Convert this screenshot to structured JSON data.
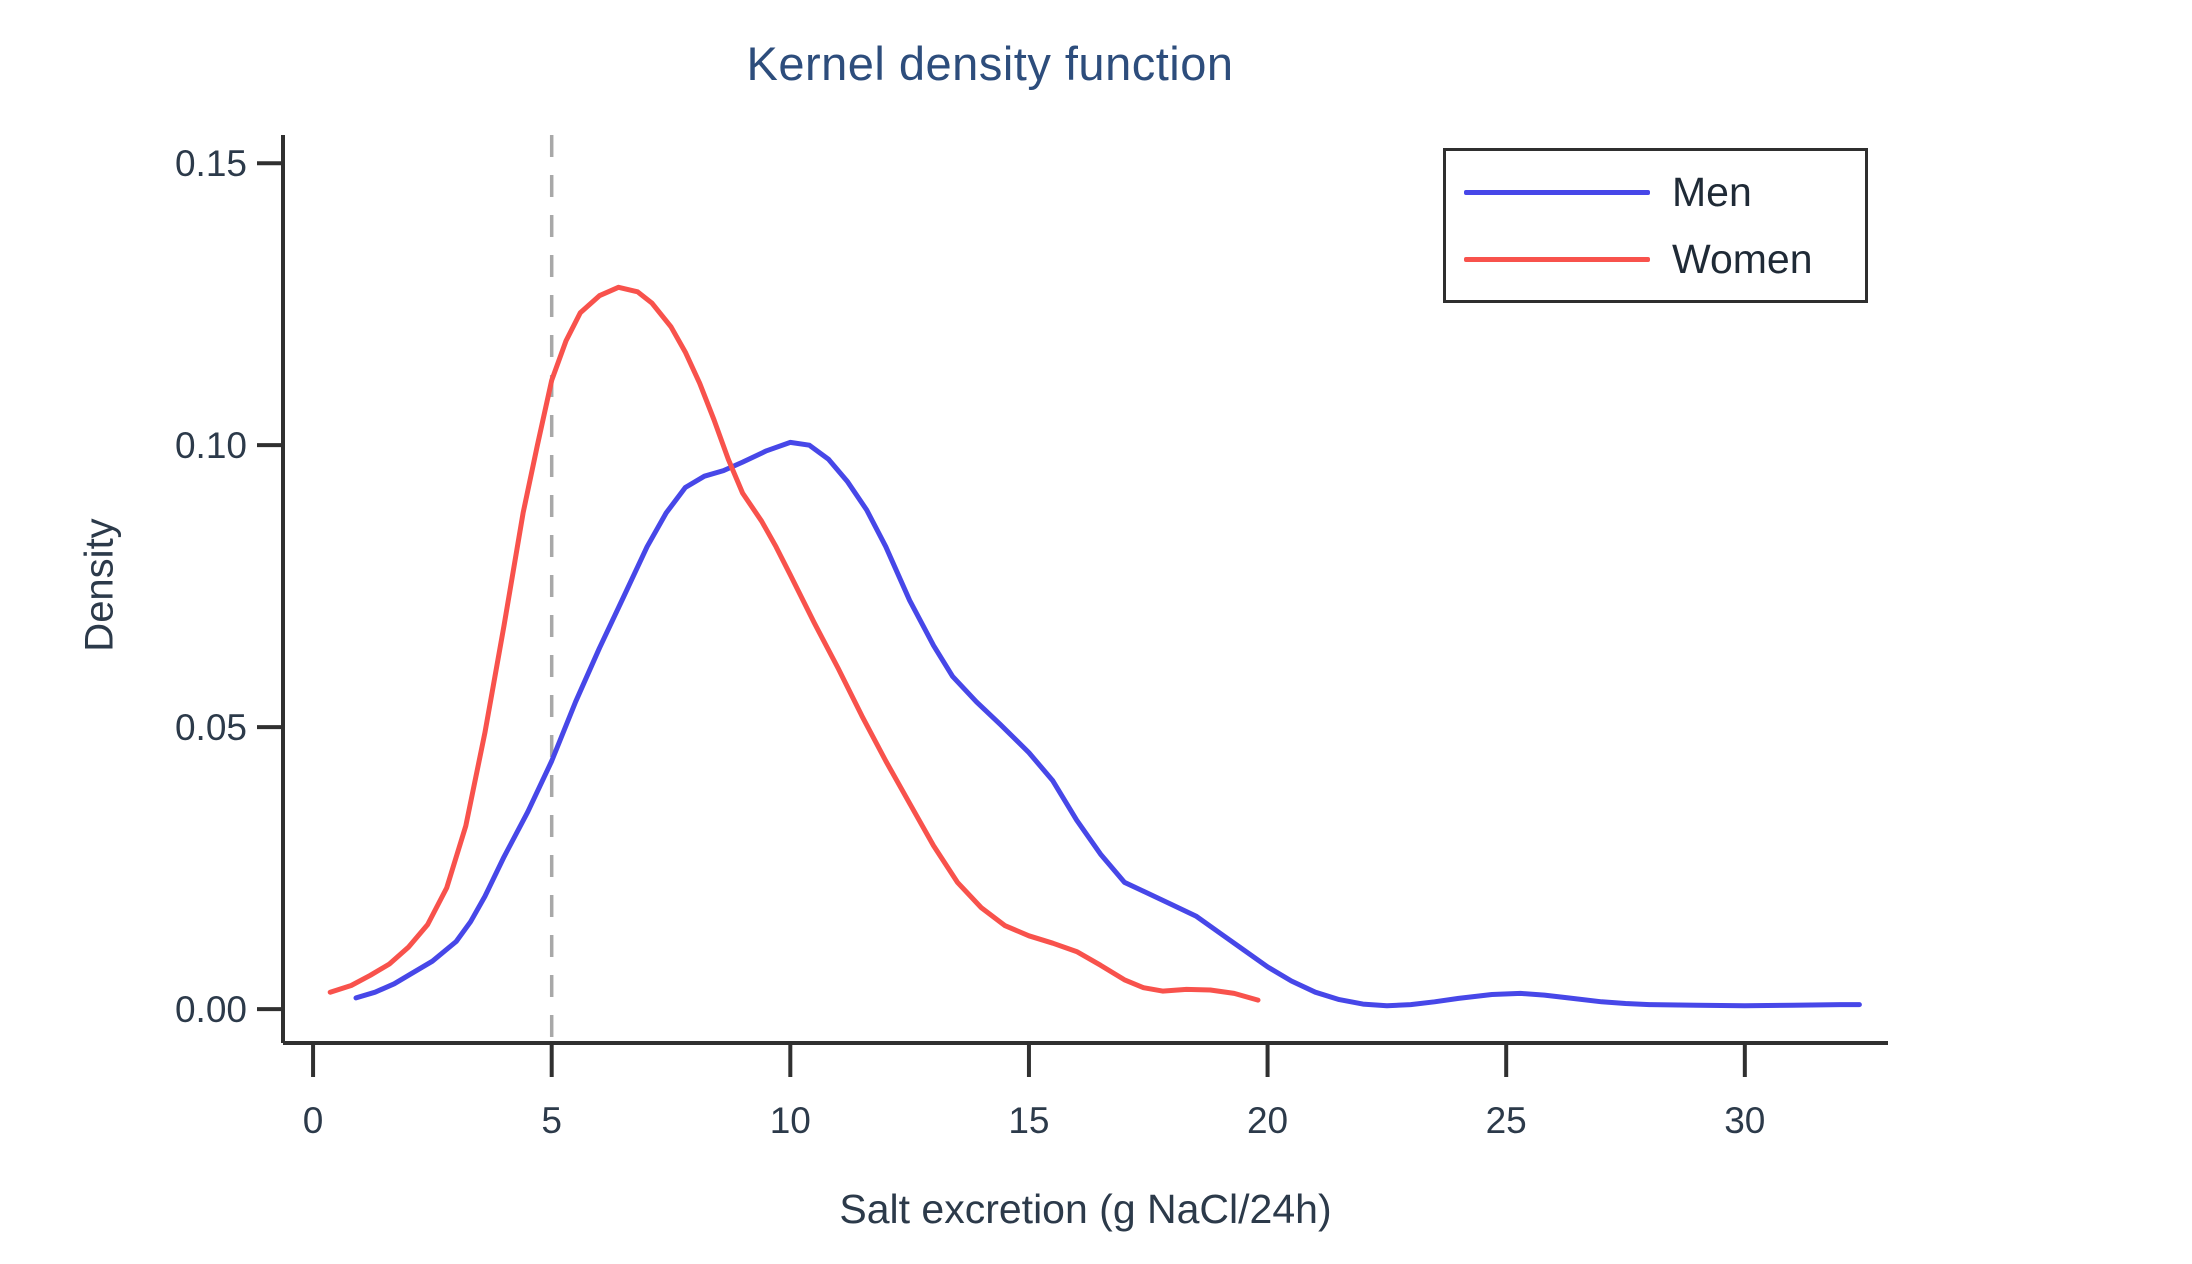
{
  "chart_data": {
    "type": "line",
    "title": "Kernel density function",
    "xlabel": "Salt excretion (g NaCl/24h)",
    "ylabel": "Density",
    "x_axis": {
      "min": -0.63,
      "max": 33.0,
      "ticks": [
        0,
        5,
        10,
        15,
        20,
        25,
        30
      ],
      "tick_labels": [
        "0",
        "5",
        "10",
        "15",
        "20",
        "25",
        "30"
      ]
    },
    "y_axis": {
      "min": -0.006,
      "max": 0.155,
      "ticks": [
        0,
        0.05,
        0.1,
        0.15
      ],
      "tick_labels": [
        "0.00",
        "0.05",
        "0.10",
        "0.15"
      ]
    },
    "grid": "off",
    "reference_line": {
      "x": 5,
      "style": "dashed",
      "color": "#a8a8a8"
    },
    "legend": {
      "position": "top-right",
      "entries": [
        "Men",
        "Women"
      ]
    },
    "series": [
      {
        "name": "Men",
        "color": "#4747e8",
        "points": [
          [
            0.9,
            0.002
          ],
          [
            1.3,
            0.003
          ],
          [
            1.7,
            0.0045
          ],
          [
            2,
            0.006
          ],
          [
            2.5,
            0.0085
          ],
          [
            3,
            0.012
          ],
          [
            3.3,
            0.0155
          ],
          [
            3.6,
            0.02
          ],
          [
            4,
            0.027
          ],
          [
            4.5,
            0.035
          ],
          [
            5,
            0.044
          ],
          [
            5.5,
            0.0545
          ],
          [
            6,
            0.064
          ],
          [
            6.5,
            0.073
          ],
          [
            7,
            0.082
          ],
          [
            7.4,
            0.088
          ],
          [
            7.8,
            0.0925
          ],
          [
            8.2,
            0.0945
          ],
          [
            8.6,
            0.0955
          ],
          [
            9,
            0.097
          ],
          [
            9.5,
            0.099
          ],
          [
            10,
            0.1005
          ],
          [
            10.4,
            0.1
          ],
          [
            10.8,
            0.0975
          ],
          [
            11.2,
            0.0935
          ],
          [
            11.6,
            0.0885
          ],
          [
            12,
            0.082
          ],
          [
            12.5,
            0.0725
          ],
          [
            13,
            0.0645
          ],
          [
            13.4,
            0.059
          ],
          [
            13.9,
            0.0545
          ],
          [
            14.4,
            0.0505
          ],
          [
            15,
            0.0455
          ],
          [
            15.5,
            0.0405
          ],
          [
            16,
            0.0335
          ],
          [
            16.5,
            0.0275
          ],
          [
            17,
            0.0225
          ],
          [
            17.5,
            0.0205
          ],
          [
            18,
            0.0185
          ],
          [
            18.5,
            0.0165
          ],
          [
            19,
            0.0135
          ],
          [
            19.5,
            0.0105
          ],
          [
            20,
            0.0075
          ],
          [
            20.5,
            0.005
          ],
          [
            21,
            0.003
          ],
          [
            21.5,
            0.0017
          ],
          [
            22,
            0.0009
          ],
          [
            22.5,
            0.0006
          ],
          [
            23,
            0.0008
          ],
          [
            23.5,
            0.0013
          ],
          [
            24,
            0.0019
          ],
          [
            24.7,
            0.0026
          ],
          [
            25.3,
            0.0028
          ],
          [
            25.8,
            0.0025
          ],
          [
            26.3,
            0.002
          ],
          [
            27,
            0.0013
          ],
          [
            27.5,
            0.001
          ],
          [
            28,
            0.0008
          ],
          [
            29,
            0.0007
          ],
          [
            30,
            0.0006
          ],
          [
            31,
            0.0007
          ],
          [
            32,
            0.0008
          ],
          [
            32.4,
            0.0008
          ]
        ]
      },
      {
        "name": "Women",
        "color": "#f8524c",
        "points": [
          [
            0.36,
            0.003
          ],
          [
            0.8,
            0.0042
          ],
          [
            1.2,
            0.006
          ],
          [
            1.6,
            0.008
          ],
          [
            2,
            0.011
          ],
          [
            2.4,
            0.015
          ],
          [
            2.8,
            0.0215
          ],
          [
            3.2,
            0.0325
          ],
          [
            3.6,
            0.049
          ],
          [
            4,
            0.068
          ],
          [
            4.4,
            0.088
          ],
          [
            4.7,
            0.1
          ],
          [
            5,
            0.1115
          ],
          [
            5.3,
            0.1185
          ],
          [
            5.6,
            0.1235
          ],
          [
            6,
            0.1265
          ],
          [
            6.4,
            0.128
          ],
          [
            6.8,
            0.1272
          ],
          [
            7.1,
            0.1252
          ],
          [
            7.5,
            0.121
          ],
          [
            7.8,
            0.1165
          ],
          [
            8.1,
            0.111
          ],
          [
            8.4,
            0.1045
          ],
          [
            8.7,
            0.0975
          ],
          [
            9,
            0.0915
          ],
          [
            9.4,
            0.0865
          ],
          [
            9.7,
            0.082
          ],
          [
            10,
            0.077
          ],
          [
            10.5,
            0.0685
          ],
          [
            11,
            0.0605
          ],
          [
            11.5,
            0.052
          ],
          [
            12,
            0.044
          ],
          [
            12.5,
            0.0365
          ],
          [
            13,
            0.029
          ],
          [
            13.5,
            0.0225
          ],
          [
            14,
            0.018
          ],
          [
            14.5,
            0.0148
          ],
          [
            15,
            0.013
          ],
          [
            15.5,
            0.0117
          ],
          [
            16,
            0.0102
          ],
          [
            16.5,
            0.0078
          ],
          [
            17,
            0.0052
          ],
          [
            17.4,
            0.0038
          ],
          [
            17.8,
            0.0032
          ],
          [
            18.3,
            0.0035
          ],
          [
            18.8,
            0.0034
          ],
          [
            19.3,
            0.0028
          ],
          [
            19.8,
            0.0016
          ]
        ]
      }
    ]
  },
  "colors": {
    "title": "#2d4d7c",
    "axis": "#303030",
    "tick_text": "#2c3a4a",
    "legend_text": "#1f2a36",
    "legend_border": "#2f2f2f",
    "background": "#ffffff"
  }
}
